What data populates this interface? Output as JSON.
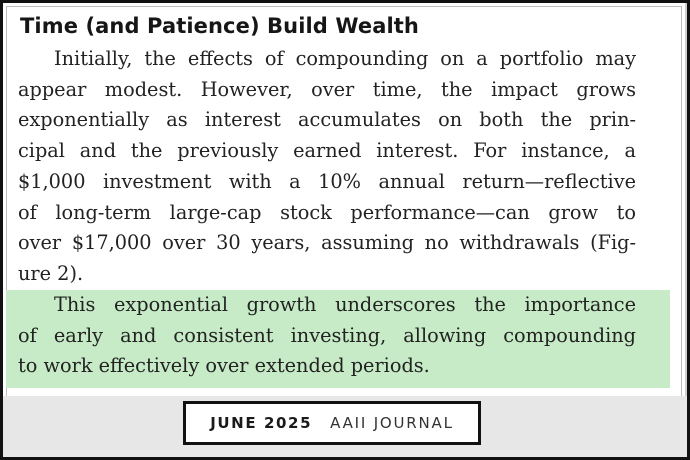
{
  "article": {
    "heading": "Time (and Patience) Build Wealth",
    "paragraph1_lines": [
      "Initially, the effects of compounding on a portfolio may",
      "appear modest. However, over time, the impact grows",
      "exponentially as interest accumulates on both the prin-",
      "cipal and the previously earned interest. For instance, a",
      "$1,000 investment with a 10% annual return—reflective",
      "of long-term large-cap stock performance—can grow to",
      "over $17,000 over 30 years, assuming no withdrawals (Fig-",
      "ure 2)."
    ],
    "paragraph2_lines": [
      "This exponential growth underscores the importance",
      "of early and consistent investing, allowing compounding",
      "to work effectively over extended periods."
    ],
    "highlight_color": "#c6ebc6"
  },
  "footer": {
    "issue_date": "JUNE 2025",
    "publication": "AAII JOURNAL"
  }
}
